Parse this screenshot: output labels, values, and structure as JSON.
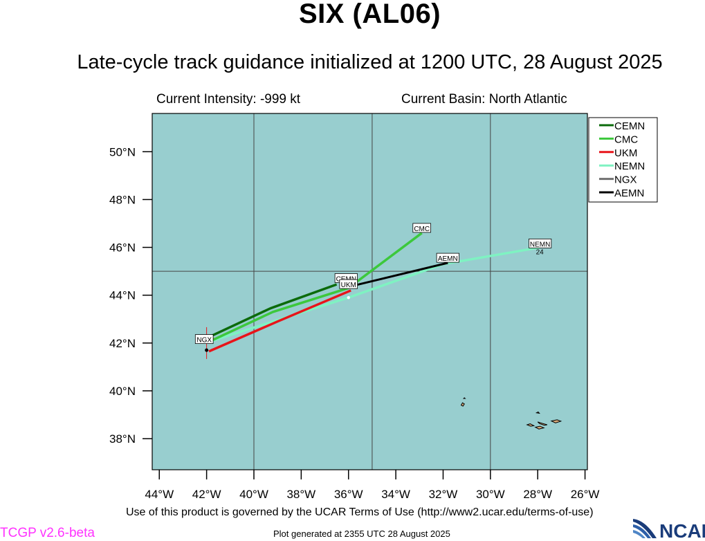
{
  "header": {
    "title": "SIX (AL06)",
    "subtitle": "Late-cycle track guidance initialized at 1200 UTC, 28 August 2025",
    "intensity": "Current Intensity: -999 kt",
    "basin": "Current Basin: North Atlantic"
  },
  "footer": {
    "terms": "Use of this product is governed by the UCAR Terms of Use (http://www2.ucar.edu/terms-of-use)",
    "version": "TCGP v2.6-beta",
    "generated": "Plot generated at 2355 UTC   28 August 2025",
    "logo_text": "NCAR"
  },
  "colors": {
    "ocean": "#98cecf",
    "land": "#d4a878",
    "grid": "#444444",
    "version_text": "#ff33ff",
    "ncar_blue": "#1a3c7a"
  },
  "chart_data": {
    "type": "line",
    "xlim": [
      -44.3,
      -25.9
    ],
    "ylim": [
      36.7,
      51.6
    ],
    "x_ticks": [
      -44,
      -42,
      -40,
      -38,
      -36,
      -34,
      -32,
      -30,
      -28,
      -26
    ],
    "x_tick_labels": [
      "44°W",
      "42°W",
      "40°W",
      "38°W",
      "36°W",
      "34°W",
      "32°W",
      "30°W",
      "28°W",
      "26°W"
    ],
    "y_ticks": [
      38,
      40,
      42,
      44,
      46,
      48,
      50
    ],
    "y_tick_labels": [
      "38°N",
      "40°N",
      "42°N",
      "44°N",
      "46°N",
      "48°N",
      "50°N"
    ],
    "grid_lon": [
      -40,
      -35,
      -30
    ],
    "grid_lat": [
      45
    ],
    "legend_position": "top-right",
    "current_position": {
      "lon": -42.0,
      "lat": 42.2
    },
    "series": [
      {
        "name": "CEMN",
        "color": "#0b6b0b",
        "width": 3.5,
        "points": [
          [
            -41.9,
            42.25
          ],
          [
            -39.3,
            43.45
          ],
          [
            -36.5,
            44.45
          ]
        ],
        "label": {
          "text": "CEMN",
          "lon": -36.1,
          "lat": 44.7
        }
      },
      {
        "name": "CMC",
        "color": "#3cc83c",
        "width": 3.5,
        "points": [
          [
            -41.9,
            42.05
          ],
          [
            -39.2,
            43.3
          ],
          [
            -36.0,
            44.3
          ],
          [
            -32.9,
            46.6
          ]
        ],
        "label": {
          "text": "CMC",
          "lon": -32.9,
          "lat": 46.8
        }
      },
      {
        "name": "UKM",
        "color": "#e8141a",
        "width": 3.5,
        "points": [
          [
            -41.9,
            41.65
          ],
          [
            -39.0,
            42.9
          ],
          [
            -35.9,
            44.2
          ]
        ],
        "label": {
          "text": "UKM",
          "lon": -36.0,
          "lat": 44.45
        }
      },
      {
        "name": "NEMN",
        "color": "#7ff2c2",
        "width": 3.5,
        "points": [
          [
            -41.9,
            42.05
          ],
          [
            -36.0,
            43.9
          ],
          [
            -32.0,
            45.3
          ],
          [
            -27.9,
            46.0
          ]
        ],
        "label": {
          "text": "NEMN",
          "lon": -27.9,
          "lat": 46.15
        },
        "marker_label": "24"
      },
      {
        "name": "NGX",
        "color": "#707070",
        "width": 3,
        "points": [
          [
            -42.0,
            41.7
          ]
        ],
        "label": {
          "text": "NGX",
          "lon": -42.1,
          "lat": 42.15
        }
      },
      {
        "name": "AEMN",
        "color": "#000000",
        "width": 3,
        "points": [
          [
            -36.2,
            44.3
          ],
          [
            -31.8,
            45.35
          ]
        ],
        "label": {
          "text": "AEMN",
          "lon": -31.8,
          "lat": 45.55
        }
      }
    ],
    "islands": [
      [
        [
          -31.24,
          39.4
        ],
        [
          -31.18,
          39.5
        ],
        [
          -31.1,
          39.45
        ],
        [
          -31.16,
          39.36
        ]
      ],
      [
        [
          -31.13,
          39.68
        ],
        [
          -31.1,
          39.71
        ],
        [
          -31.07,
          39.68
        ]
      ],
      [
        [
          -28.45,
          38.58
        ],
        [
          -28.32,
          38.62
        ],
        [
          -28.16,
          38.54
        ],
        [
          -28.3,
          38.52
        ]
      ],
      [
        [
          -28.1,
          38.48
        ],
        [
          -27.9,
          38.52
        ],
        [
          -27.74,
          38.45
        ],
        [
          -27.95,
          38.4
        ]
      ],
      [
        [
          -28.0,
          38.7
        ],
        [
          -27.82,
          38.64
        ],
        [
          -27.6,
          38.58
        ],
        [
          -27.72,
          38.56
        ],
        [
          -27.92,
          38.63
        ]
      ],
      [
        [
          -27.42,
          38.74
        ],
        [
          -27.18,
          38.79
        ],
        [
          -27.02,
          38.73
        ],
        [
          -27.25,
          38.66
        ]
      ],
      [
        [
          -28.05,
          39.08
        ],
        [
          -27.98,
          39.12
        ],
        [
          -27.93,
          39.06
        ]
      ],
      [
        [
          -25.86,
          37.88
        ],
        [
          -25.8,
          37.86
        ],
        [
          -25.86,
          37.82
        ]
      ]
    ]
  }
}
